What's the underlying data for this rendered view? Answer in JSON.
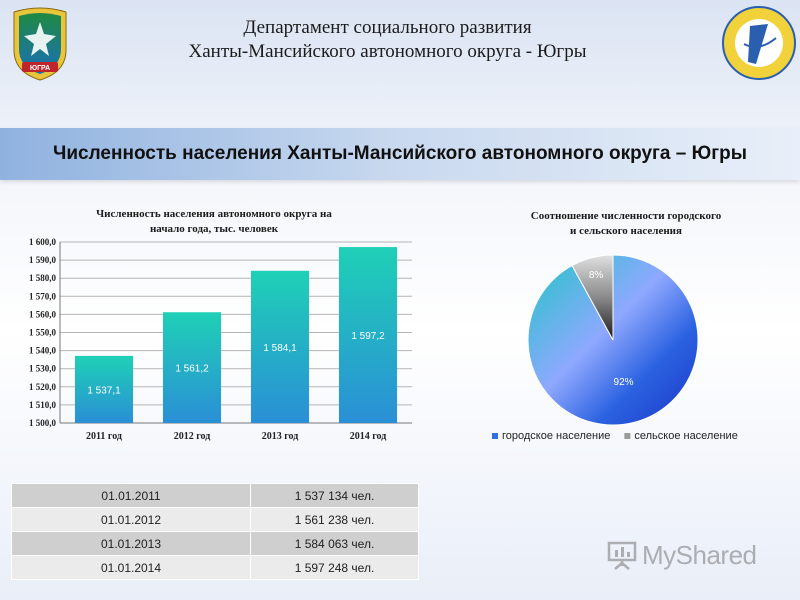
{
  "header": {
    "title_line1": "Департамент социального развития",
    "title_line2": "Ханты-Мансийского автономного округа - Югры",
    "emblem_text": "ЮГРА"
  },
  "banner": {
    "title": "Численность населения Ханты-Мансийского автономного округа – Югры"
  },
  "chart_data": [
    {
      "type": "bar",
      "title": "Численность населения автономного округа на начало года, тыс. человек",
      "title_line1": "Численность населения автономного округа на",
      "title_line2": "начало года, тыс. человек",
      "categories": [
        "2011 год",
        "2012 год",
        "2013 год",
        "2014 год"
      ],
      "values": [
        1537.1,
        1561.2,
        1584.1,
        1597.2
      ],
      "value_labels": [
        "1 537,1",
        "1 561,2",
        "1 584,1",
        "1 597,2"
      ],
      "ylim": [
        1500,
        1600
      ],
      "ytick_labels": [
        "1 500,0",
        "1 510,0",
        "1 520,0",
        "1 530,0",
        "1 540,0",
        "1 550,0",
        "1 560,0",
        "1 570,0",
        "1 580,0",
        "1 590,0",
        "1 600,0"
      ],
      "grid": true,
      "colors": [
        "#2a8fd6",
        "#1fd0b6"
      ]
    },
    {
      "type": "pie",
      "title": "Соотношение численности городского и сельского населения",
      "title_line1": "Соотношение численности городского",
      "title_line2": "и сельского населения",
      "series": [
        {
          "name": "городское население",
          "value": 92,
          "label": "92%",
          "color": "#2f6fe0"
        },
        {
          "name": "сельское население",
          "value": 8,
          "label": "8%",
          "color": "#9a9a9a"
        }
      ],
      "legend_position": "bottom"
    }
  ],
  "table": {
    "rows": [
      {
        "date": "01.01.2011",
        "value": "1 537 134 чел."
      },
      {
        "date": "01.01.2012",
        "value": "1 561 238 чел."
      },
      {
        "date": "01.01.2013",
        "value": "1 584 063 чел."
      },
      {
        "date": "01.01.2014",
        "value": "1 597 248 чел."
      }
    ]
  },
  "watermark": {
    "text": "MyShared"
  }
}
